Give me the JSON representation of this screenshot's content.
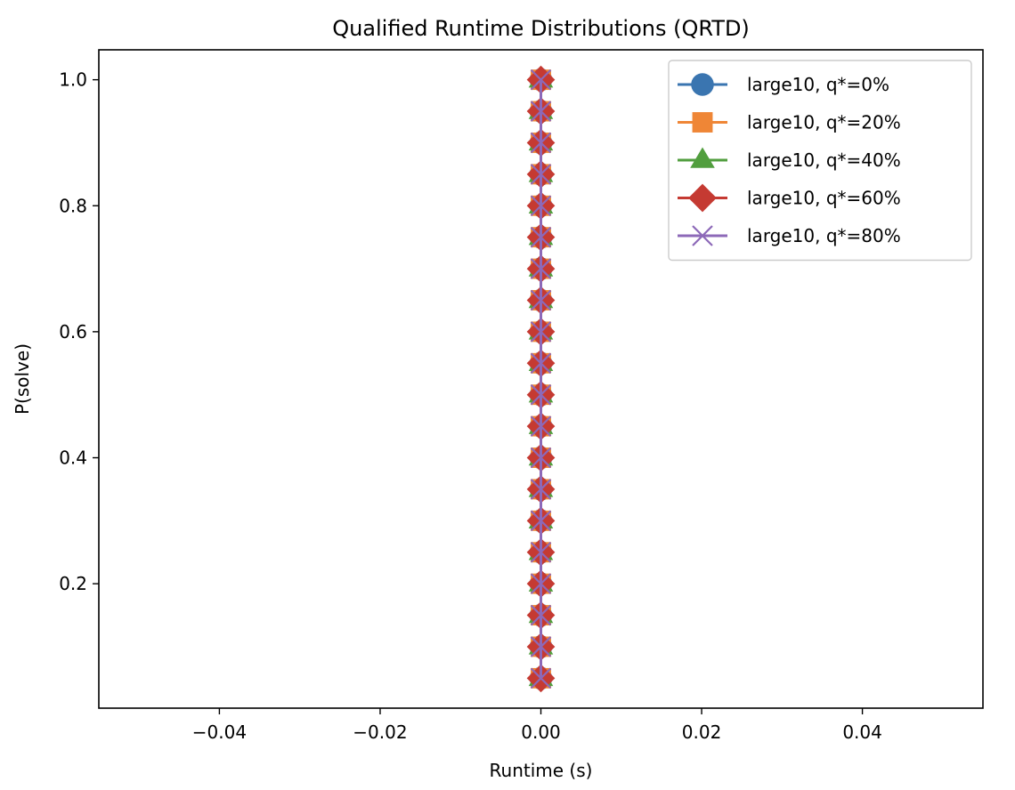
{
  "chart_data": {
    "type": "line",
    "title": "Qualified Runtime Distributions (QRTD)",
    "xlabel": "Runtime (s)",
    "ylabel": "P(solve)",
    "xlim": [
      -0.055,
      0.055
    ],
    "ylim": [
      0.0025,
      1.0475
    ],
    "xticks": [
      -0.04,
      -0.02,
      0.0,
      0.02,
      0.04
    ],
    "xtick_labels": [
      "−0.04",
      "−0.02",
      "0.00",
      "0.02",
      "0.04"
    ],
    "yticks": [
      0.2,
      0.4,
      0.6,
      0.8,
      1.0
    ],
    "ytick_labels": [
      "0.2",
      "0.4",
      "0.6",
      "0.8",
      "1.0"
    ],
    "grid": false,
    "legend_position": "top-right",
    "x": [
      0,
      0,
      0,
      0,
      0,
      0,
      0,
      0,
      0,
      0,
      0,
      0,
      0,
      0,
      0,
      0,
      0,
      0,
      0,
      0
    ],
    "y": [
      0.05,
      0.1,
      0.15,
      0.2,
      0.25,
      0.3,
      0.35,
      0.4,
      0.45,
      0.5,
      0.55,
      0.6,
      0.65,
      0.7,
      0.75,
      0.8,
      0.85,
      0.9,
      0.95,
      1.0
    ],
    "series": [
      {
        "name": "large10, q*=0%",
        "color": "#3a75b0",
        "marker": "circle",
        "x": [
          0,
          0,
          0,
          0,
          0,
          0,
          0,
          0,
          0,
          0,
          0,
          0,
          0,
          0,
          0,
          0,
          0,
          0,
          0,
          0
        ],
        "y": [
          0.05,
          0.1,
          0.15,
          0.2,
          0.25,
          0.3,
          0.35,
          0.4,
          0.45,
          0.5,
          0.55,
          0.6,
          0.65,
          0.7,
          0.75,
          0.8,
          0.85,
          0.9,
          0.95,
          1.0
        ]
      },
      {
        "name": "large10, q*=20%",
        "color": "#ef8636",
        "marker": "square",
        "x": [
          0,
          0,
          0,
          0,
          0,
          0,
          0,
          0,
          0,
          0,
          0,
          0,
          0,
          0,
          0,
          0,
          0,
          0,
          0,
          0
        ],
        "y": [
          0.05,
          0.1,
          0.15,
          0.2,
          0.25,
          0.3,
          0.35,
          0.4,
          0.45,
          0.5,
          0.55,
          0.6,
          0.65,
          0.7,
          0.75,
          0.8,
          0.85,
          0.9,
          0.95,
          1.0
        ]
      },
      {
        "name": "large10, q*=40%",
        "color": "#519e3e",
        "marker": "triangle",
        "x": [
          0,
          0,
          0,
          0,
          0,
          0,
          0,
          0,
          0,
          0,
          0,
          0,
          0,
          0,
          0,
          0,
          0,
          0,
          0,
          0
        ],
        "y": [
          0.05,
          0.1,
          0.15,
          0.2,
          0.25,
          0.3,
          0.35,
          0.4,
          0.45,
          0.5,
          0.55,
          0.6,
          0.65,
          0.7,
          0.75,
          0.8,
          0.85,
          0.9,
          0.95,
          1.0
        ]
      },
      {
        "name": "large10, q*=60%",
        "color": "#c53a32",
        "marker": "diamond",
        "x": [
          0,
          0,
          0,
          0,
          0,
          0,
          0,
          0,
          0,
          0,
          0,
          0,
          0,
          0,
          0,
          0,
          0,
          0,
          0,
          0
        ],
        "y": [
          0.05,
          0.1,
          0.15,
          0.2,
          0.25,
          0.3,
          0.35,
          0.4,
          0.45,
          0.5,
          0.55,
          0.6,
          0.65,
          0.7,
          0.75,
          0.8,
          0.85,
          0.9,
          0.95,
          1.0
        ]
      },
      {
        "name": "large10, q*=80%",
        "color": "#8d69b8",
        "marker": "x",
        "x": [
          0,
          0,
          0,
          0,
          0,
          0,
          0,
          0,
          0,
          0,
          0,
          0,
          0,
          0,
          0,
          0,
          0,
          0,
          0,
          0
        ],
        "y": [
          0.05,
          0.1,
          0.15,
          0.2,
          0.25,
          0.3,
          0.35,
          0.4,
          0.45,
          0.5,
          0.55,
          0.6,
          0.65,
          0.7,
          0.75,
          0.8,
          0.85,
          0.9,
          0.95,
          1.0
        ]
      }
    ]
  }
}
